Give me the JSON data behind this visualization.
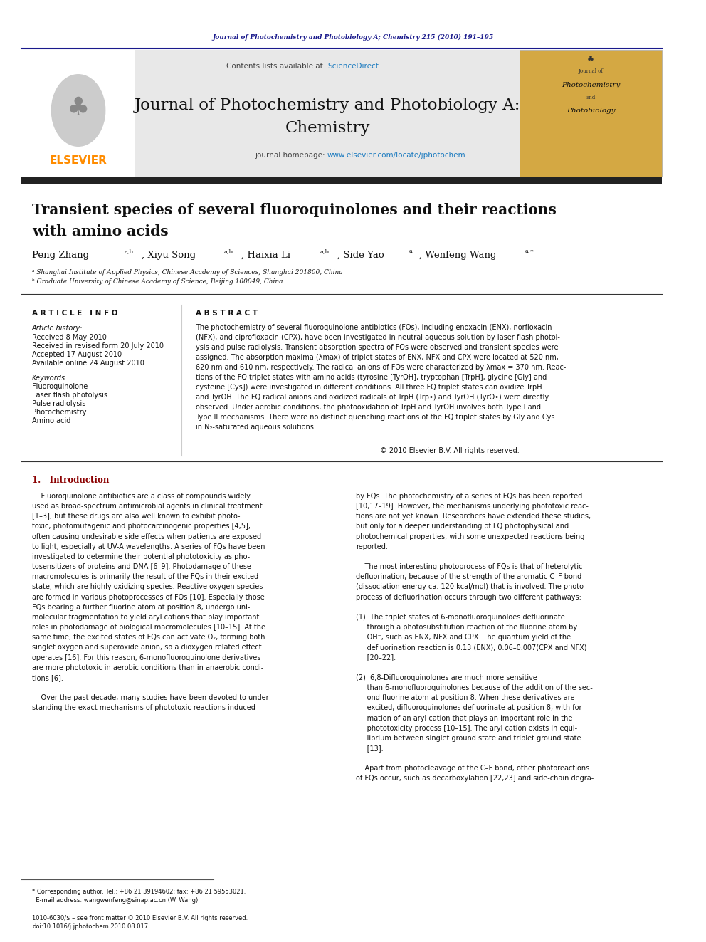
{
  "page_width": 9.92,
  "page_height": 13.23,
  "background_color": "#ffffff",
  "header_journal_text": "Journal of Photochemistry and Photobiology A; Chemistry 215 (2010) 191–195",
  "header_journal_color": "#1a1a8c",
  "journal_title_main": "Journal of Photochemistry and Photobiology A:",
  "journal_title_sub": "Chemistry",
  "elsevier_color": "#ff8c00",
  "sciencedirect_color": "#1a7abf",
  "header_bg_color": "#e8e8e8",
  "article_info_header": "A R T I C L E   I N F O",
  "abstract_header": "A B S T R A C T",
  "article_history_label": "Article history:",
  "received_label": "Received 8 May 2010",
  "revised_label": "Received in revised form 20 July 2010",
  "accepted_label": "Accepted 17 August 2010",
  "available_label": "Available online 24 August 2010",
  "keywords_label": "Keywords:",
  "keyword1": "Fluoroquinolone",
  "keyword2": "Laser flash photolysis",
  "keyword3": "Pulse radiolysis",
  "keyword4": "Photochemistry",
  "keyword5": "Amino acid",
  "intro_color": "#8b0000",
  "link_color": "#1a7abf"
}
